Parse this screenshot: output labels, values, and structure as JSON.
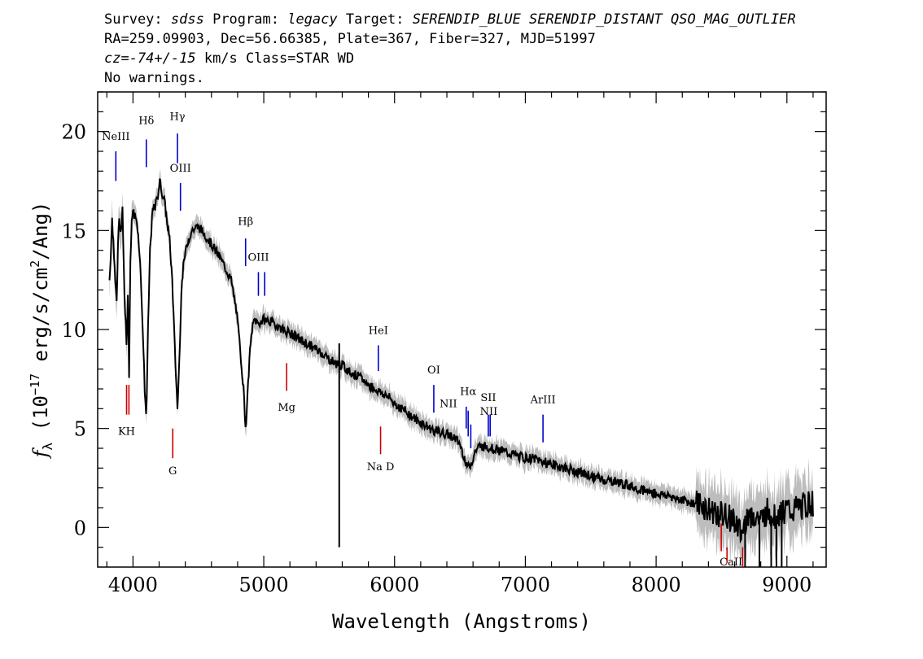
{
  "header": {
    "line1_prefix1": "Survey: ",
    "survey": "sdss",
    "line1_prefix2": " Program: ",
    "program": "legacy",
    "line1_prefix3": " Target: ",
    "target": "SERENDIP_BLUE SERENDIP_DISTANT QSO_MAG_OUTLIER",
    "line2": "RA=259.09903, Dec=56.66385, Plate=367, Fiber=327, MJD=51997",
    "line3_cz": "cz=-74+/-15",
    "line3_rest": " km/s Class=STAR WD",
    "line4": "No warnings."
  },
  "chart_data": {
    "type": "line",
    "xlabel": "Wavelength (Angstroms)",
    "ylabel": "f_λ (10^-17 erg/s/cm^2/Ang)",
    "ylabel_parts": {
      "f": "f",
      "sub": "λ",
      "a": " (10",
      "exp1": "−17",
      "b": " erg/s/cm",
      "exp2": "2",
      "c": "/Ang)"
    },
    "xlim": [
      3730,
      9300
    ],
    "ylim": [
      -2,
      22
    ],
    "xticks": [
      4000,
      5000,
      6000,
      7000,
      8000,
      9000
    ],
    "yticks": [
      0,
      5,
      10,
      15,
      20
    ],
    "grid": false,
    "series": [
      {
        "role": "flux",
        "color": "#000000",
        "x": [
          3820,
          3840,
          3860,
          3875,
          3890,
          3905,
          3920,
          3935,
          3950,
          3960,
          3970,
          3980,
          3995,
          4010,
          4030,
          4050,
          4070,
          4090,
          4102,
          4115,
          4130,
          4150,
          4170,
          4190,
          4205,
          4220,
          4240,
          4260,
          4280,
          4300,
          4320,
          4340,
          4355,
          4370,
          4390,
          4420,
          4450,
          4500,
          4550,
          4600,
          4650,
          4700,
          4750,
          4790,
          4820,
          4845,
          4861,
          4875,
          4890,
          4910,
          4930,
          4960,
          5000,
          5050,
          5100,
          5150,
          5200,
          5250,
          5300,
          5350,
          5400,
          5450,
          5500,
          5550,
          5600,
          5650,
          5700,
          5750,
          5800,
          5850,
          5900,
          5950,
          6000,
          6050,
          6100,
          6150,
          6200,
          6250,
          6300,
          6350,
          6400,
          6450,
          6500,
          6530,
          6563,
          6590,
          6620,
          6650,
          6700,
          6750,
          6800,
          6850,
          6900,
          6950,
          7000,
          7050,
          7100,
          7150,
          7200,
          7250,
          7300,
          7350,
          7400,
          7500,
          7600,
          7700,
          7800,
          7900,
          8000,
          8100,
          8200,
          8300,
          8350,
          8400,
          8450,
          8500,
          8550,
          8600,
          8650,
          8700,
          8750,
          8800,
          8850,
          8900,
          8950,
          9000,
          9050,
          9100,
          9150,
          9200
        ],
        "y": [
          12.5,
          15.5,
          13.5,
          11.0,
          15.5,
          14.8,
          15.8,
          12.0,
          9.0,
          12.0,
          8.0,
          13.5,
          16.0,
          15.8,
          15.5,
          14.0,
          11.0,
          7.0,
          5.5,
          10.0,
          14.0,
          16.0,
          16.2,
          16.8,
          17.5,
          17.0,
          16.5,
          15.5,
          14.5,
          12.5,
          9.0,
          6.0,
          8.5,
          12.0,
          13.5,
          14.5,
          15.0,
          15.2,
          14.8,
          14.3,
          13.8,
          13.2,
          12.5,
          11.0,
          9.0,
          7.0,
          5.0,
          6.5,
          8.5,
          10.0,
          10.5,
          10.3,
          10.5,
          10.4,
          10.2,
          10.0,
          9.8,
          9.6,
          9.4,
          9.2,
          9.0,
          8.8,
          8.5,
          8.3,
          8.2,
          7.9,
          7.7,
          7.5,
          7.2,
          7.0,
          6.8,
          6.6,
          6.3,
          6.0,
          5.8,
          5.5,
          5.3,
          5.1,
          4.9,
          4.8,
          4.7,
          4.6,
          4.2,
          3.6,
          3.0,
          3.3,
          3.9,
          4.1,
          4.1,
          4.0,
          3.9,
          3.8,
          3.7,
          3.6,
          3.5,
          3.5,
          3.4,
          3.3,
          3.2,
          3.1,
          3.0,
          2.9,
          2.8,
          2.6,
          2.4,
          2.3,
          2.1,
          1.9,
          1.7,
          1.6,
          1.4,
          1.2,
          1.1,
          0.8,
          0.8,
          0.6,
          0.5,
          0.4,
          -0.5,
          0.7,
          0.6,
          0.3,
          0.8,
          0.5,
          0.8,
          0.9,
          0.8,
          1.0,
          1.1,
          1.2
        ]
      },
      {
        "role": "noise",
        "color": "#bdbdbd"
      }
    ],
    "line_markers": [
      {
        "label": "NeIII",
        "wavelength": 3869,
        "y1": 17.5,
        "y2": 19.0,
        "label_y": 19.5,
        "color": "#0000cc"
      },
      {
        "label": "Hδ",
        "wavelength": 4102,
        "y1": 18.2,
        "y2": 19.6,
        "label_y": 20.3,
        "color": "#0000cc"
      },
      {
        "label": "Hγ",
        "wavelength": 4340,
        "y1": 18.4,
        "y2": 19.9,
        "label_y": 20.5,
        "color": "#0000cc"
      },
      {
        "label": "OIII",
        "wavelength": 4363,
        "y1": 16.0,
        "y2": 17.4,
        "label_y": 17.9,
        "color": "#0000cc"
      },
      {
        "label": "Hβ",
        "wavelength": 4861,
        "y1": 13.2,
        "y2": 14.6,
        "label_y": 15.2,
        "color": "#0000cc"
      },
      {
        "label": "OIII",
        "wavelength": 4959,
        "y1": 11.7,
        "y2": 12.9,
        "label_y": 13.4,
        "color": "#0000cc"
      },
      {
        "label": "",
        "wavelength": 5007,
        "y1": 11.7,
        "y2": 12.9,
        "label_y": 0,
        "color": "#0000cc"
      },
      {
        "label": "HeI",
        "wavelength": 5876,
        "y1": 7.9,
        "y2": 9.2,
        "label_y": 9.7,
        "color": "#0000cc"
      },
      {
        "label": "OI",
        "wavelength": 6300,
        "y1": 5.8,
        "y2": 7.2,
        "label_y": 7.7,
        "color": "#0000cc"
      },
      {
        "label": "NII",
        "wavelength": 6548,
        "y1": 5.0,
        "y2": 6.1,
        "label_y": 6.0,
        "label_dx": -22,
        "color": "#0000cc"
      },
      {
        "label": "Hα",
        "wavelength": 6563,
        "y1": 4.6,
        "y2": 5.9,
        "label_y": 6.6,
        "color": "#0000cc"
      },
      {
        "label": "NII",
        "wavelength": 6583,
        "y1": 4.0,
        "y2": 5.2,
        "label_y": 5.6,
        "label_dx": 22,
        "color": "#0000cc"
      },
      {
        "label": "SII",
        "wavelength": 6717,
        "y1": 4.6,
        "y2": 5.7,
        "label_y": 6.3,
        "color": "#0000cc"
      },
      {
        "label": "",
        "wavelength": 6731,
        "y1": 4.6,
        "y2": 5.7,
        "label_y": 0,
        "color": "#0000cc"
      },
      {
        "label": "ArIII",
        "wavelength": 7135,
        "y1": 4.3,
        "y2": 5.7,
        "label_y": 6.2,
        "color": "#0000cc"
      },
      {
        "label": "KH",
        "wavelength": 3951,
        "y1": 5.7,
        "y2": 7.2,
        "label_y": 4.6,
        "label_dx": 0,
        "color": "#cc0000"
      },
      {
        "label": "",
        "wavelength": 3969,
        "y1": 5.7,
        "y2": 7.2,
        "label_y": 0,
        "color": "#cc0000"
      },
      {
        "label": "G",
        "wavelength": 4304,
        "y1": 3.5,
        "y2": 5.0,
        "label_y": 2.6,
        "color": "#cc0000"
      },
      {
        "label": "Mg",
        "wavelength": 5175,
        "y1": 6.9,
        "y2": 8.3,
        "label_y": 5.8,
        "color": "#cc0000"
      },
      {
        "label": "Na D",
        "wavelength": 5893,
        "y1": 3.7,
        "y2": 5.1,
        "label_y": 2.8,
        "color": "#cc0000"
      },
      {
        "label": "CaII",
        "wavelength": 8498,
        "y1": -1.2,
        "y2": 0.2,
        "label_y": -2.0,
        "label_dx": 12,
        "color": "#cc0000"
      },
      {
        "label": "",
        "wavelength": 8542,
        "y1": -1.8,
        "y2": -1.0,
        "label_y": 0,
        "color": "#cc0000"
      },
      {
        "label": "",
        "wavelength": 8662,
        "y1": -2.0,
        "y2": -1.0,
        "label_y": 0,
        "color": "#cc0000"
      }
    ]
  }
}
